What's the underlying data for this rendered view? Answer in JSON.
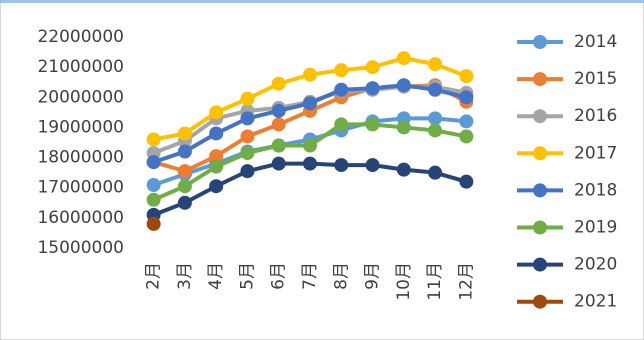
{
  "chart_data": {
    "type": "line",
    "categories": [
      "2月",
      "3月",
      "4月",
      "5月",
      "6月",
      "7月",
      "8月",
      "9月",
      "10月",
      "11月",
      "12月"
    ],
    "ylim": [
      15000000,
      22000000
    ],
    "yticks": [
      15000000,
      16000000,
      17000000,
      18000000,
      19000000,
      20000000,
      21000000,
      22000000
    ],
    "grid": false,
    "legend": "right",
    "series": [
      {
        "name": "2014",
        "color": "#5b9bd5",
        "values": [
          17090000,
          17450000,
          17800000,
          18200000,
          18400000,
          18600000,
          18900000,
          19200000,
          19300000,
          19300000,
          19200000
        ]
      },
      {
        "name": "2015",
        "color": "#ed7d31",
        "values": [
          17850000,
          17550000,
          18050000,
          18700000,
          19100000,
          19550000,
          20000000,
          20300000,
          20350000,
          20400000,
          19850000
        ]
      },
      {
        "name": "2016",
        "color": "#a5a5a5",
        "values": [
          18150000,
          18550000,
          19300000,
          19550000,
          19650000,
          19850000,
          20200000,
          20250000,
          20350000,
          20350000,
          20150000
        ]
      },
      {
        "name": "2017",
        "color": "#ffc000",
        "values": [
          18600000,
          18800000,
          19500000,
          19950000,
          20450000,
          20750000,
          20900000,
          21000000,
          21300000,
          21100000,
          20700000
        ]
      },
      {
        "name": "2018",
        "color": "#4472c4",
        "values": [
          17850000,
          18200000,
          18800000,
          19300000,
          19550000,
          19800000,
          20250000,
          20300000,
          20400000,
          20250000,
          20000000
        ]
      },
      {
        "name": "2019",
        "color": "#70ad47",
        "values": [
          16600000,
          17050000,
          17700000,
          18150000,
          18400000,
          18400000,
          19100000,
          19100000,
          19000000,
          18900000,
          18700000
        ]
      },
      {
        "name": "2020",
        "color": "#264478",
        "values": [
          16100000,
          16500000,
          17050000,
          17550000,
          17800000,
          17800000,
          17750000,
          17750000,
          17600000,
          17500000,
          17200000
        ]
      },
      {
        "name": "2021",
        "color": "#9e480e",
        "values": [
          15800000,
          null,
          null,
          null,
          null,
          null,
          null,
          null,
          null,
          null,
          null
        ]
      }
    ]
  }
}
